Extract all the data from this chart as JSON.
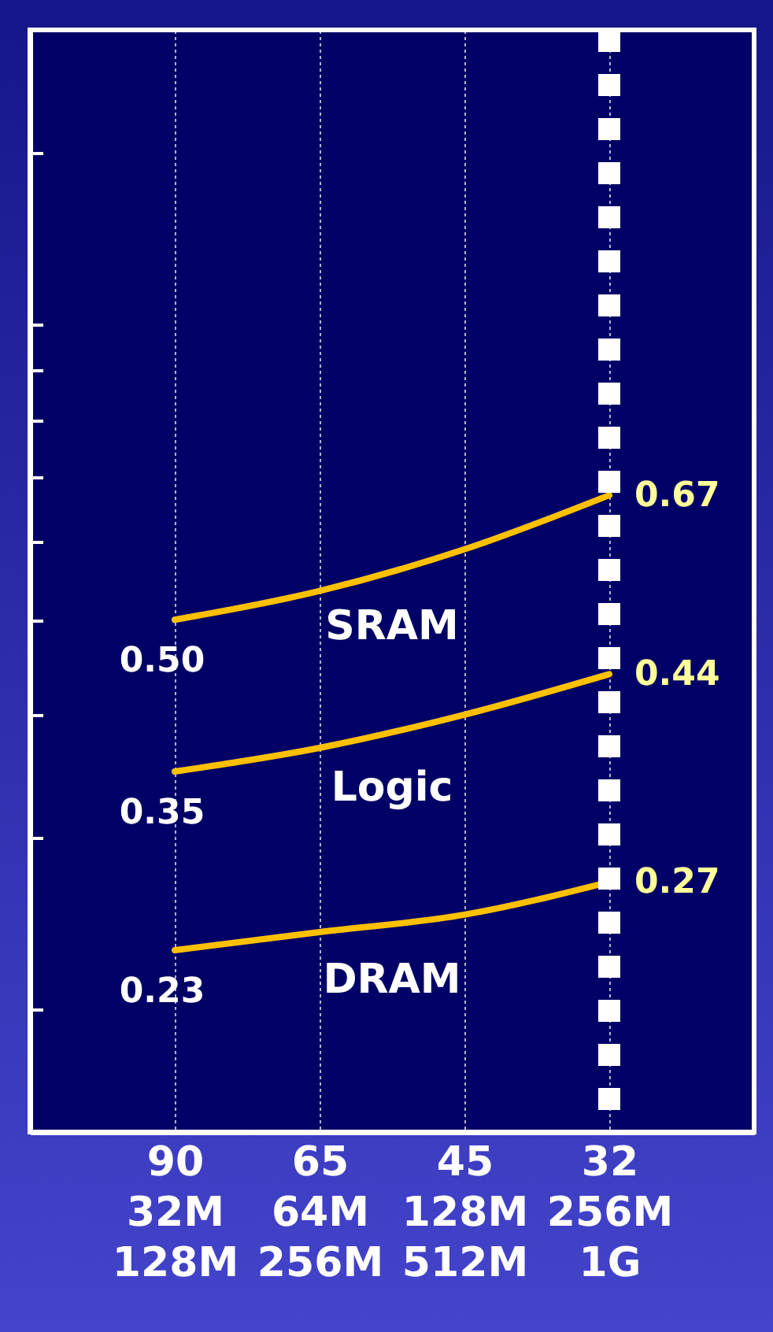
{
  "chart_data": {
    "type": "line",
    "categories": [
      "90\n32M\n128M",
      "65\n64M\n256M",
      "45\n128M\n512M",
      "32\n256M\n1G"
    ],
    "series": [
      {
        "name": "SRAM",
        "color": "#ffc000",
        "values": [
          0.5,
          0.535,
          0.59,
          0.67
        ],
        "value_labels": [
          "0.50",
          null,
          null,
          "0.67"
        ]
      },
      {
        "name": "Logic",
        "color": "#ffc000",
        "values": [
          0.35,
          0.37,
          0.4,
          0.44
        ],
        "value_labels": [
          "0.35",
          null,
          null,
          "0.44"
        ]
      },
      {
        "name": "DRAM",
        "color": "#ffc000",
        "values": [
          0.23,
          0.24,
          0.25,
          0.27
        ],
        "value_labels": [
          "0.23",
          null,
          null,
          "0.27"
        ]
      }
    ],
    "log": "y",
    "ylim": [
      0.15,
      2
    ],
    "yticks": [
      {
        "value": 0.2,
        "label": null
      },
      {
        "value": 0.3,
        "label": null
      },
      {
        "value": 0.4,
        "label": null
      },
      {
        "value": 0.5,
        "label": null
      },
      {
        "value": 0.6,
        "label": null
      },
      {
        "value": 0.7,
        "label": null
      },
      {
        "value": 0.8,
        "label": null
      },
      {
        "value": 0.9,
        "label": null
      },
      {
        "value": 1,
        "label": null
      },
      {
        "value": 1.5,
        "label": null
      }
    ],
    "grid": "x",
    "line_style": "solid",
    "marker": "none",
    "ref_lines": [
      {
        "axis": "x",
        "value": "32\n256M\n1G",
        "color": "#ffffff",
        "line_style": "dashed"
      }
    ]
  }
}
